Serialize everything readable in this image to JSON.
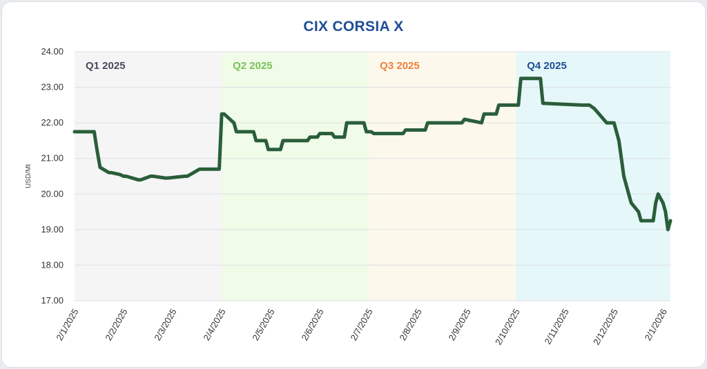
{
  "chart_data": {
    "type": "line",
    "title": "CIX CORSIA X",
    "xlabel": "",
    "ylabel": "USD/Mt",
    "ylim": [
      17.0,
      24.0
    ],
    "y_ticks": [
      "17.00",
      "18.00",
      "19.00",
      "20.00",
      "21.00",
      "22.00",
      "23.00",
      "24.00"
    ],
    "x_ticks": [
      "2/1/2025",
      "2/2/2025",
      "2/3/2025",
      "2/4/2025",
      "2/5/2025",
      "2/6/2025",
      "2/7/2025",
      "2/8/2025",
      "2/9/2025",
      "2/10/2025",
      "2/11/2025",
      "2/12/2025",
      "2/1/2026"
    ],
    "x_range_months": [
      0,
      12.15
    ],
    "grid": true,
    "line_color": "#2a5e3a",
    "quarters": [
      {
        "label": "Q1 2025",
        "start": 0,
        "end": 3,
        "fill": "#f5f5f6",
        "text_color": "#4a4a5e"
      },
      {
        "label": "Q2 2025",
        "start": 3,
        "end": 6,
        "fill": "#f0fbe8",
        "text_color": "#7ac25a"
      },
      {
        "label": "Q3 2025",
        "start": 6,
        "end": 9,
        "fill": "#fcf9ec",
        "text_color": "#f0803c"
      },
      {
        "label": "Q4 2025",
        "start": 9,
        "end": 12.15,
        "fill": "#e6f7f9",
        "text_color": "#1f4e96"
      }
    ],
    "series": [
      {
        "x": [
          0,
          0.4,
          0.45,
          0.52,
          0.58,
          0.7,
          0.75,
          0.92,
          1.0,
          1.05,
          1.3,
          1.35,
          1.55,
          1.6,
          1.85,
          1.9,
          2.25,
          2.3,
          2.55,
          2.6,
          2.95,
          3.0,
          3.05,
          3.25,
          3.3,
          3.65,
          3.7,
          3.9,
          3.95,
          4.2,
          4.25,
          4.75,
          4.8,
          4.95,
          5.0,
          5.25,
          5.3,
          5.5,
          5.55,
          5.9,
          5.95,
          6.05,
          6.1,
          6.3,
          6.35,
          6.7,
          6.75,
          7.15,
          7.2,
          7.9,
          7.95,
          8.3,
          8.35,
          8.6,
          8.65,
          8.9,
          8.95,
          9.05,
          9.1,
          9.5,
          9.55,
          10.35,
          10.4,
          10.5,
          10.6,
          10.85,
          10.9,
          11.0,
          11.1,
          11.15,
          11.2,
          11.3,
          11.35,
          11.5,
          11.55,
          11.6,
          11.65,
          11.8,
          11.85,
          11.9,
          12.0,
          12.05,
          12.1,
          12.15
        ],
        "y": [
          21.75,
          21.75,
          21.3,
          20.75,
          20.7,
          20.6,
          20.6,
          20.55,
          20.5,
          20.5,
          20.4,
          20.4,
          20.5,
          20.5,
          20.45,
          20.45,
          20.5,
          20.5,
          20.7,
          20.7,
          20.7,
          22.25,
          22.25,
          22.0,
          21.75,
          21.75,
          21.5,
          21.5,
          21.25,
          21.25,
          21.5,
          21.5,
          21.6,
          21.6,
          21.7,
          21.7,
          21.6,
          21.6,
          22.0,
          22.0,
          21.75,
          21.75,
          21.7,
          21.7,
          21.7,
          21.7,
          21.8,
          21.8,
          22.0,
          22.0,
          22.1,
          22.0,
          22.25,
          22.25,
          22.5,
          22.5,
          22.5,
          22.5,
          23.25,
          23.25,
          22.55,
          22.5,
          22.5,
          22.5,
          22.4,
          22.0,
          22.0,
          22.0,
          21.5,
          21.0,
          20.5,
          20.0,
          19.75,
          19.5,
          19.25,
          19.25,
          19.25,
          19.25,
          19.75,
          20.0,
          19.75,
          19.5,
          19.0,
          19.25
        ]
      }
    ]
  }
}
